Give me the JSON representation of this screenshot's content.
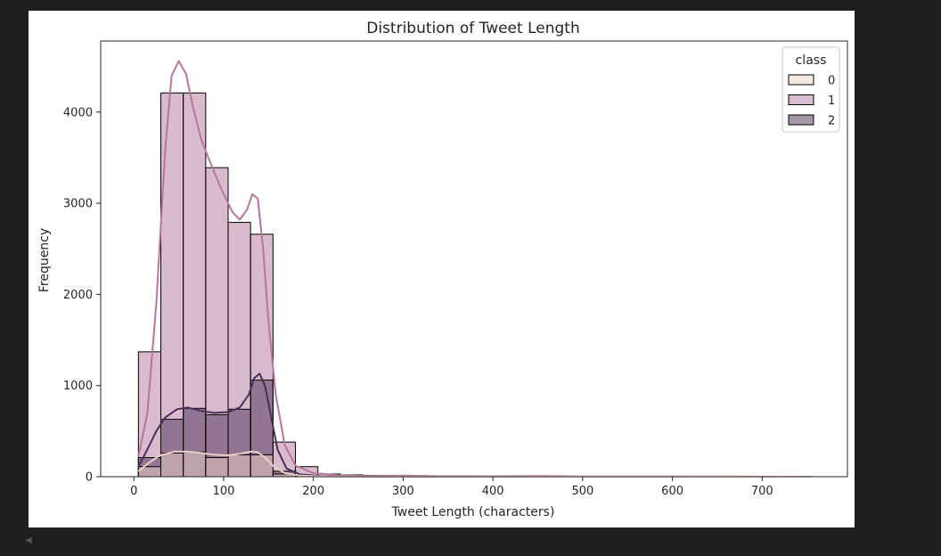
{
  "chart_data": {
    "type": "histogram",
    "title": "Distribution of Tweet Length",
    "xlabel": "Tweet Length (characters)",
    "ylabel": "Frequency",
    "xlim": [
      -37,
      795
    ],
    "ylim": [
      0,
      4780
    ],
    "xticks": [
      0,
      100,
      200,
      300,
      400,
      500,
      600,
      700
    ],
    "yticks": [
      0,
      1000,
      2000,
      3000,
      4000
    ],
    "grid": false,
    "bin_edges": [
      5,
      30,
      55,
      80,
      105,
      130,
      155,
      180,
      205,
      230,
      255,
      280,
      305,
      330,
      355,
      380,
      405,
      430,
      455,
      480,
      505,
      530,
      555,
      580,
      605,
      630,
      655,
      680,
      705,
      730,
      755
    ],
    "legend": {
      "title": "class",
      "position": "top-right",
      "entries": [
        "0",
        "1",
        "2"
      ]
    },
    "series": [
      {
        "name": "1",
        "color": "#b5779c",
        "counts": [
          1370,
          4210,
          4210,
          3390,
          2790,
          2660,
          380,
          110,
          30,
          20,
          15,
          12,
          10,
          8,
          7,
          6,
          5,
          5,
          10,
          4,
          3,
          3,
          2,
          2,
          2,
          2,
          2,
          1,
          1,
          1
        ],
        "kde": [
          [
            5,
            220
          ],
          [
            15,
            700
          ],
          [
            25,
            1900
          ],
          [
            35,
            3600
          ],
          [
            42,
            4400
          ],
          [
            50,
            4560
          ],
          [
            58,
            4420
          ],
          [
            66,
            4050
          ],
          [
            75,
            3700
          ],
          [
            85,
            3450
          ],
          [
            92,
            3280
          ],
          [
            100,
            3100
          ],
          [
            110,
            2900
          ],
          [
            118,
            2820
          ],
          [
            126,
            2930
          ],
          [
            132,
            3100
          ],
          [
            138,
            3050
          ],
          [
            144,
            2500
          ],
          [
            150,
            1700
          ],
          [
            158,
            900
          ],
          [
            168,
            350
          ],
          [
            180,
            120
          ],
          [
            200,
            40
          ],
          [
            230,
            15
          ],
          [
            260,
            8
          ],
          [
            300,
            12
          ],
          [
            340,
            6
          ],
          [
            400,
            5
          ],
          [
            450,
            8
          ],
          [
            500,
            3
          ],
          [
            600,
            2
          ],
          [
            700,
            1
          ],
          [
            755,
            0
          ]
        ]
      },
      {
        "name": "2",
        "color": "#4a2f58",
        "counts": [
          210,
          630,
          750,
          680,
          740,
          1060,
          60,
          15,
          5,
          2,
          1,
          1,
          1,
          0,
          0,
          0,
          0,
          0,
          0,
          0,
          0,
          0,
          0,
          0,
          0,
          0,
          0,
          0,
          0,
          0
        ],
        "kde": [
          [
            5,
            110
          ],
          [
            15,
            300
          ],
          [
            25,
            500
          ],
          [
            35,
            650
          ],
          [
            48,
            740
          ],
          [
            60,
            760
          ],
          [
            75,
            720
          ],
          [
            90,
            700
          ],
          [
            105,
            710
          ],
          [
            118,
            760
          ],
          [
            128,
            900
          ],
          [
            134,
            1080
          ],
          [
            140,
            1130
          ],
          [
            146,
            1000
          ],
          [
            152,
            700
          ],
          [
            160,
            300
          ],
          [
            170,
            90
          ],
          [
            185,
            25
          ],
          [
            210,
            5
          ],
          [
            260,
            1
          ],
          [
            755,
            0
          ]
        ]
      },
      {
        "name": "0",
        "color": "#eccfc5",
        "counts": [
          110,
          260,
          270,
          210,
          240,
          240,
          30,
          8,
          3,
          1,
          1,
          0,
          0,
          0,
          0,
          0,
          0,
          0,
          0,
          0,
          0,
          0,
          0,
          0,
          0,
          0,
          0,
          0,
          0,
          0
        ],
        "kde": [
          [
            5,
            60
          ],
          [
            15,
            140
          ],
          [
            28,
            230
          ],
          [
            45,
            275
          ],
          [
            60,
            275
          ],
          [
            75,
            260
          ],
          [
            90,
            240
          ],
          [
            105,
            235
          ],
          [
            118,
            250
          ],
          [
            130,
            275
          ],
          [
            138,
            270
          ],
          [
            146,
            210
          ],
          [
            156,
            110
          ],
          [
            168,
            40
          ],
          [
            185,
            12
          ],
          [
            210,
            3
          ],
          [
            260,
            1
          ],
          [
            755,
            0
          ]
        ]
      }
    ]
  }
}
